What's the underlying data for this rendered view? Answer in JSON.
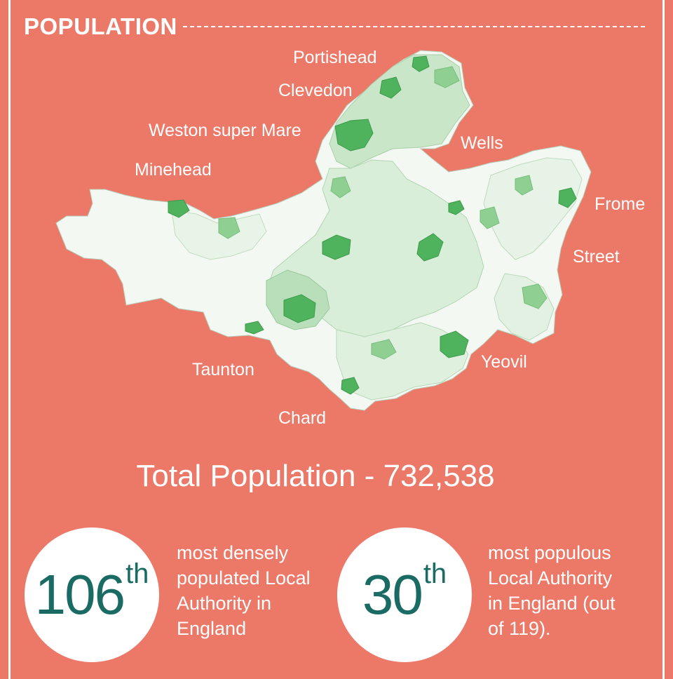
{
  "header": {
    "title": "POPULATION"
  },
  "map": {
    "towns": [
      {
        "id": "portishead",
        "label": "Portishead"
      },
      {
        "id": "clevedon",
        "label": "Clevedon"
      },
      {
        "id": "weston",
        "label": "Weston super Mare"
      },
      {
        "id": "minehead",
        "label": "Minehead"
      },
      {
        "id": "wells",
        "label": "Wells"
      },
      {
        "id": "frome",
        "label": "Frome"
      },
      {
        "id": "street",
        "label": "Street"
      },
      {
        "id": "taunton",
        "label": "Taunton"
      },
      {
        "id": "yeovil",
        "label": "Yeovil"
      },
      {
        "id": "chard",
        "label": "Chard"
      }
    ],
    "colors": {
      "light": "#f3f8f3",
      "mid": "#c9e6c9",
      "strong": "#8fcf92",
      "dense": "#4fb35e"
    }
  },
  "total": {
    "text": "Total Population - 732,538"
  },
  "stats": {
    "density": {
      "rank": "106",
      "suffix": "th",
      "text": "most densely\npopulated Local\nAuthority in\nEngland"
    },
    "populous": {
      "rank": "30",
      "suffix": "th",
      "text": "most populous\nLocal Authority\nin England (out\nof 119)."
    }
  },
  "theme": {
    "background": "#ec7868",
    "accent": "#1a6b63"
  }
}
